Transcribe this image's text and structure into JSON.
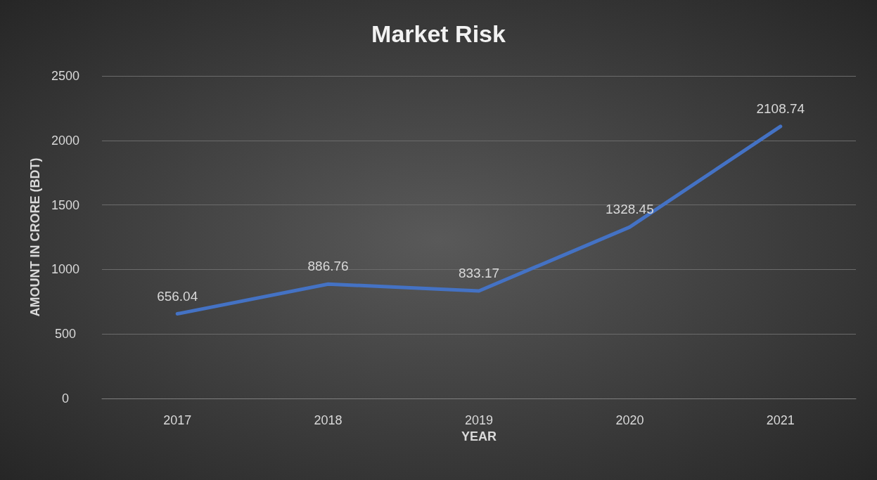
{
  "chart_data": {
    "type": "line",
    "title": "Market Risk",
    "xlabel": "YEAR",
    "ylabel": "AMOUNT IN CRORE (BDT)",
    "categories": [
      "2017",
      "2018",
      "2019",
      "2020",
      "2021"
    ],
    "series": [
      {
        "color": "#4472c4",
        "values": [
          656.04,
          886.76,
          833.17,
          1328.45,
          2108.74
        ]
      }
    ],
    "ylim": [
      0,
      2500
    ],
    "yticks": [
      0,
      500,
      1000,
      1500,
      2000,
      2500
    ],
    "grid": "y",
    "data_labels": true,
    "marker": "none",
    "line_style": "solid"
  }
}
